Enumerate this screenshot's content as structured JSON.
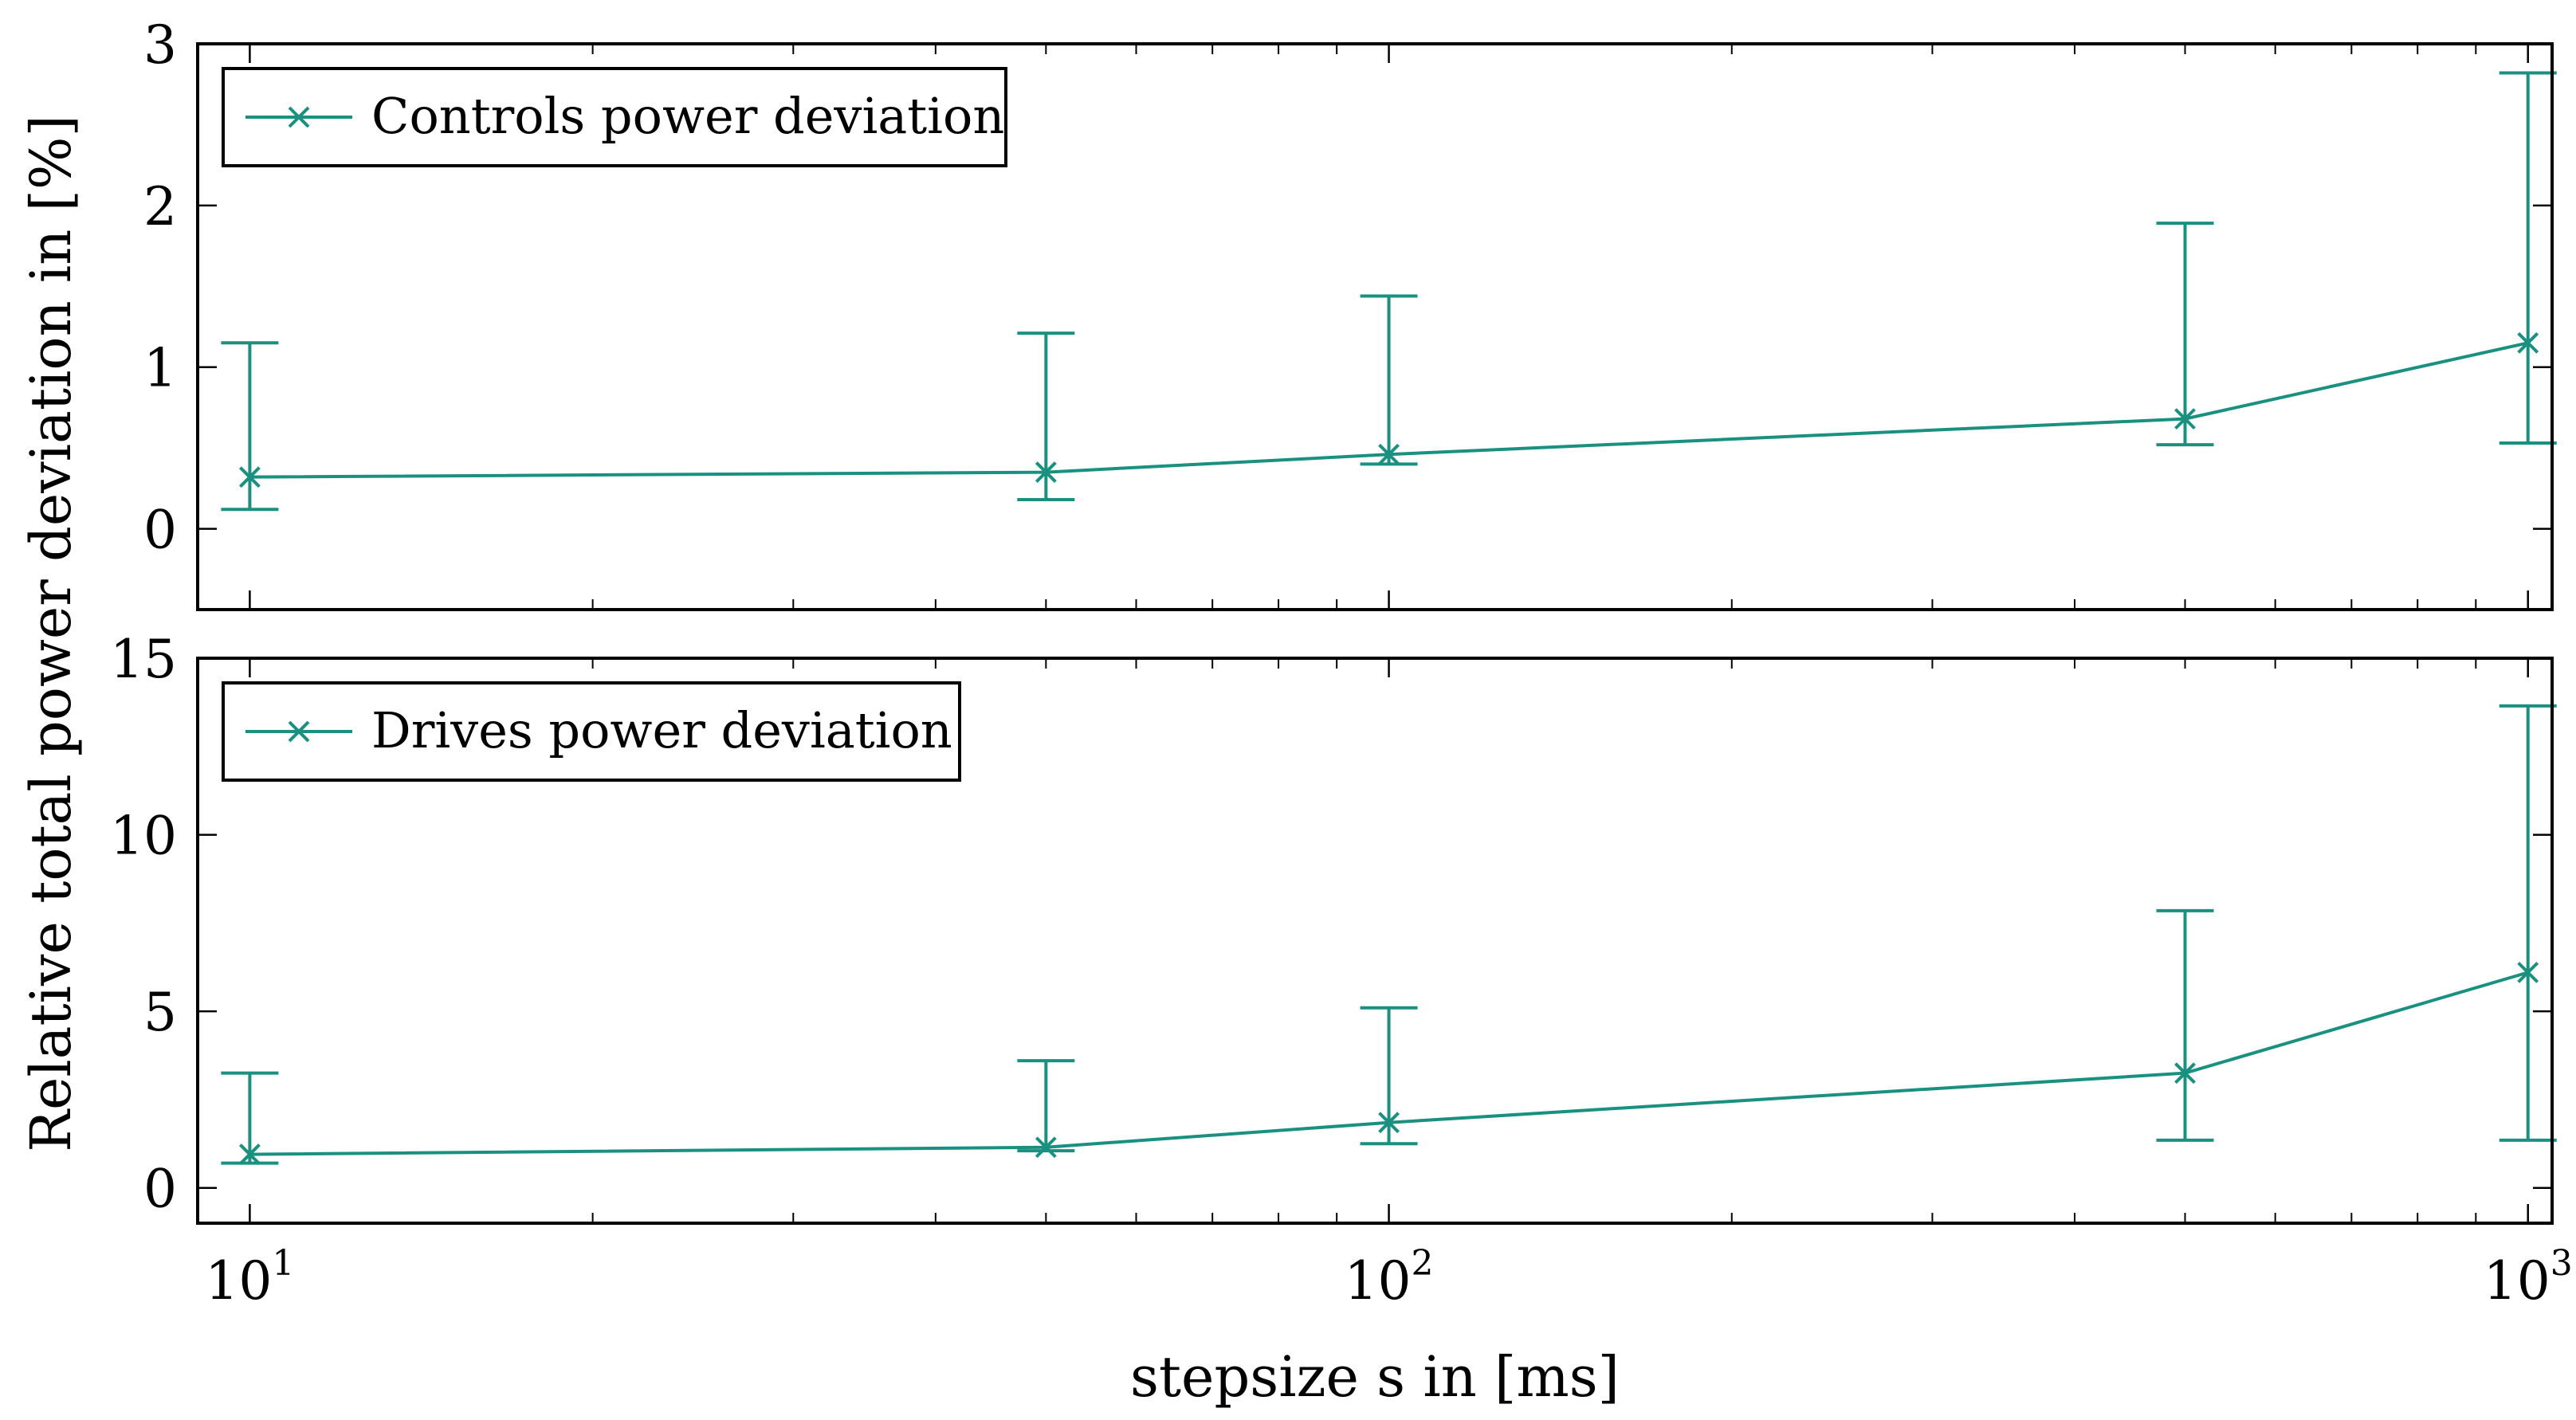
{
  "chart_data": [
    {
      "type": "line",
      "x_scale": "log",
      "xlim": [
        9,
        1050
      ],
      "ylim": [
        -0.5,
        3
      ],
      "yticks": [
        0,
        1,
        2,
        3
      ],
      "ylabel": "Relative total power deviation in [%]",
      "legend": {
        "label": "Controls power deviation",
        "position": "top-left"
      },
      "series": [
        {
          "name": "Controls power deviation",
          "color": "#1a9080",
          "x": [
            10,
            50,
            100,
            500,
            1000
          ],
          "y": [
            0.32,
            0.35,
            0.46,
            0.68,
            1.15
          ],
          "err_low": [
            0.12,
            0.18,
            0.4,
            0.52,
            0.53
          ],
          "err_high": [
            1.15,
            1.21,
            1.44,
            1.89,
            2.82
          ]
        }
      ]
    },
    {
      "type": "line",
      "x_scale": "log",
      "xlim": [
        9,
        1050
      ],
      "ylim": [
        -1,
        15
      ],
      "yticks": [
        0,
        5,
        10,
        15
      ],
      "xlabel": "stepsize s in [ms]",
      "xticks": [
        {
          "base": "10",
          "exp": "1"
        },
        {
          "base": "10",
          "exp": "2"
        },
        {
          "base": "10",
          "exp": "3"
        }
      ],
      "legend": {
        "label": "Drives power deviation",
        "position": "top-left"
      },
      "series": [
        {
          "name": "Drives power deviation",
          "color": "#1a9080",
          "x": [
            10,
            50,
            100,
            500,
            1000
          ],
          "y": [
            0.95,
            1.15,
            1.85,
            3.25,
            6.1
          ],
          "err_low": [
            0.7,
            1.05,
            1.25,
            1.35,
            1.35
          ],
          "err_high": [
            3.25,
            3.6,
            5.1,
            7.85,
            13.65
          ]
        }
      ]
    }
  ]
}
